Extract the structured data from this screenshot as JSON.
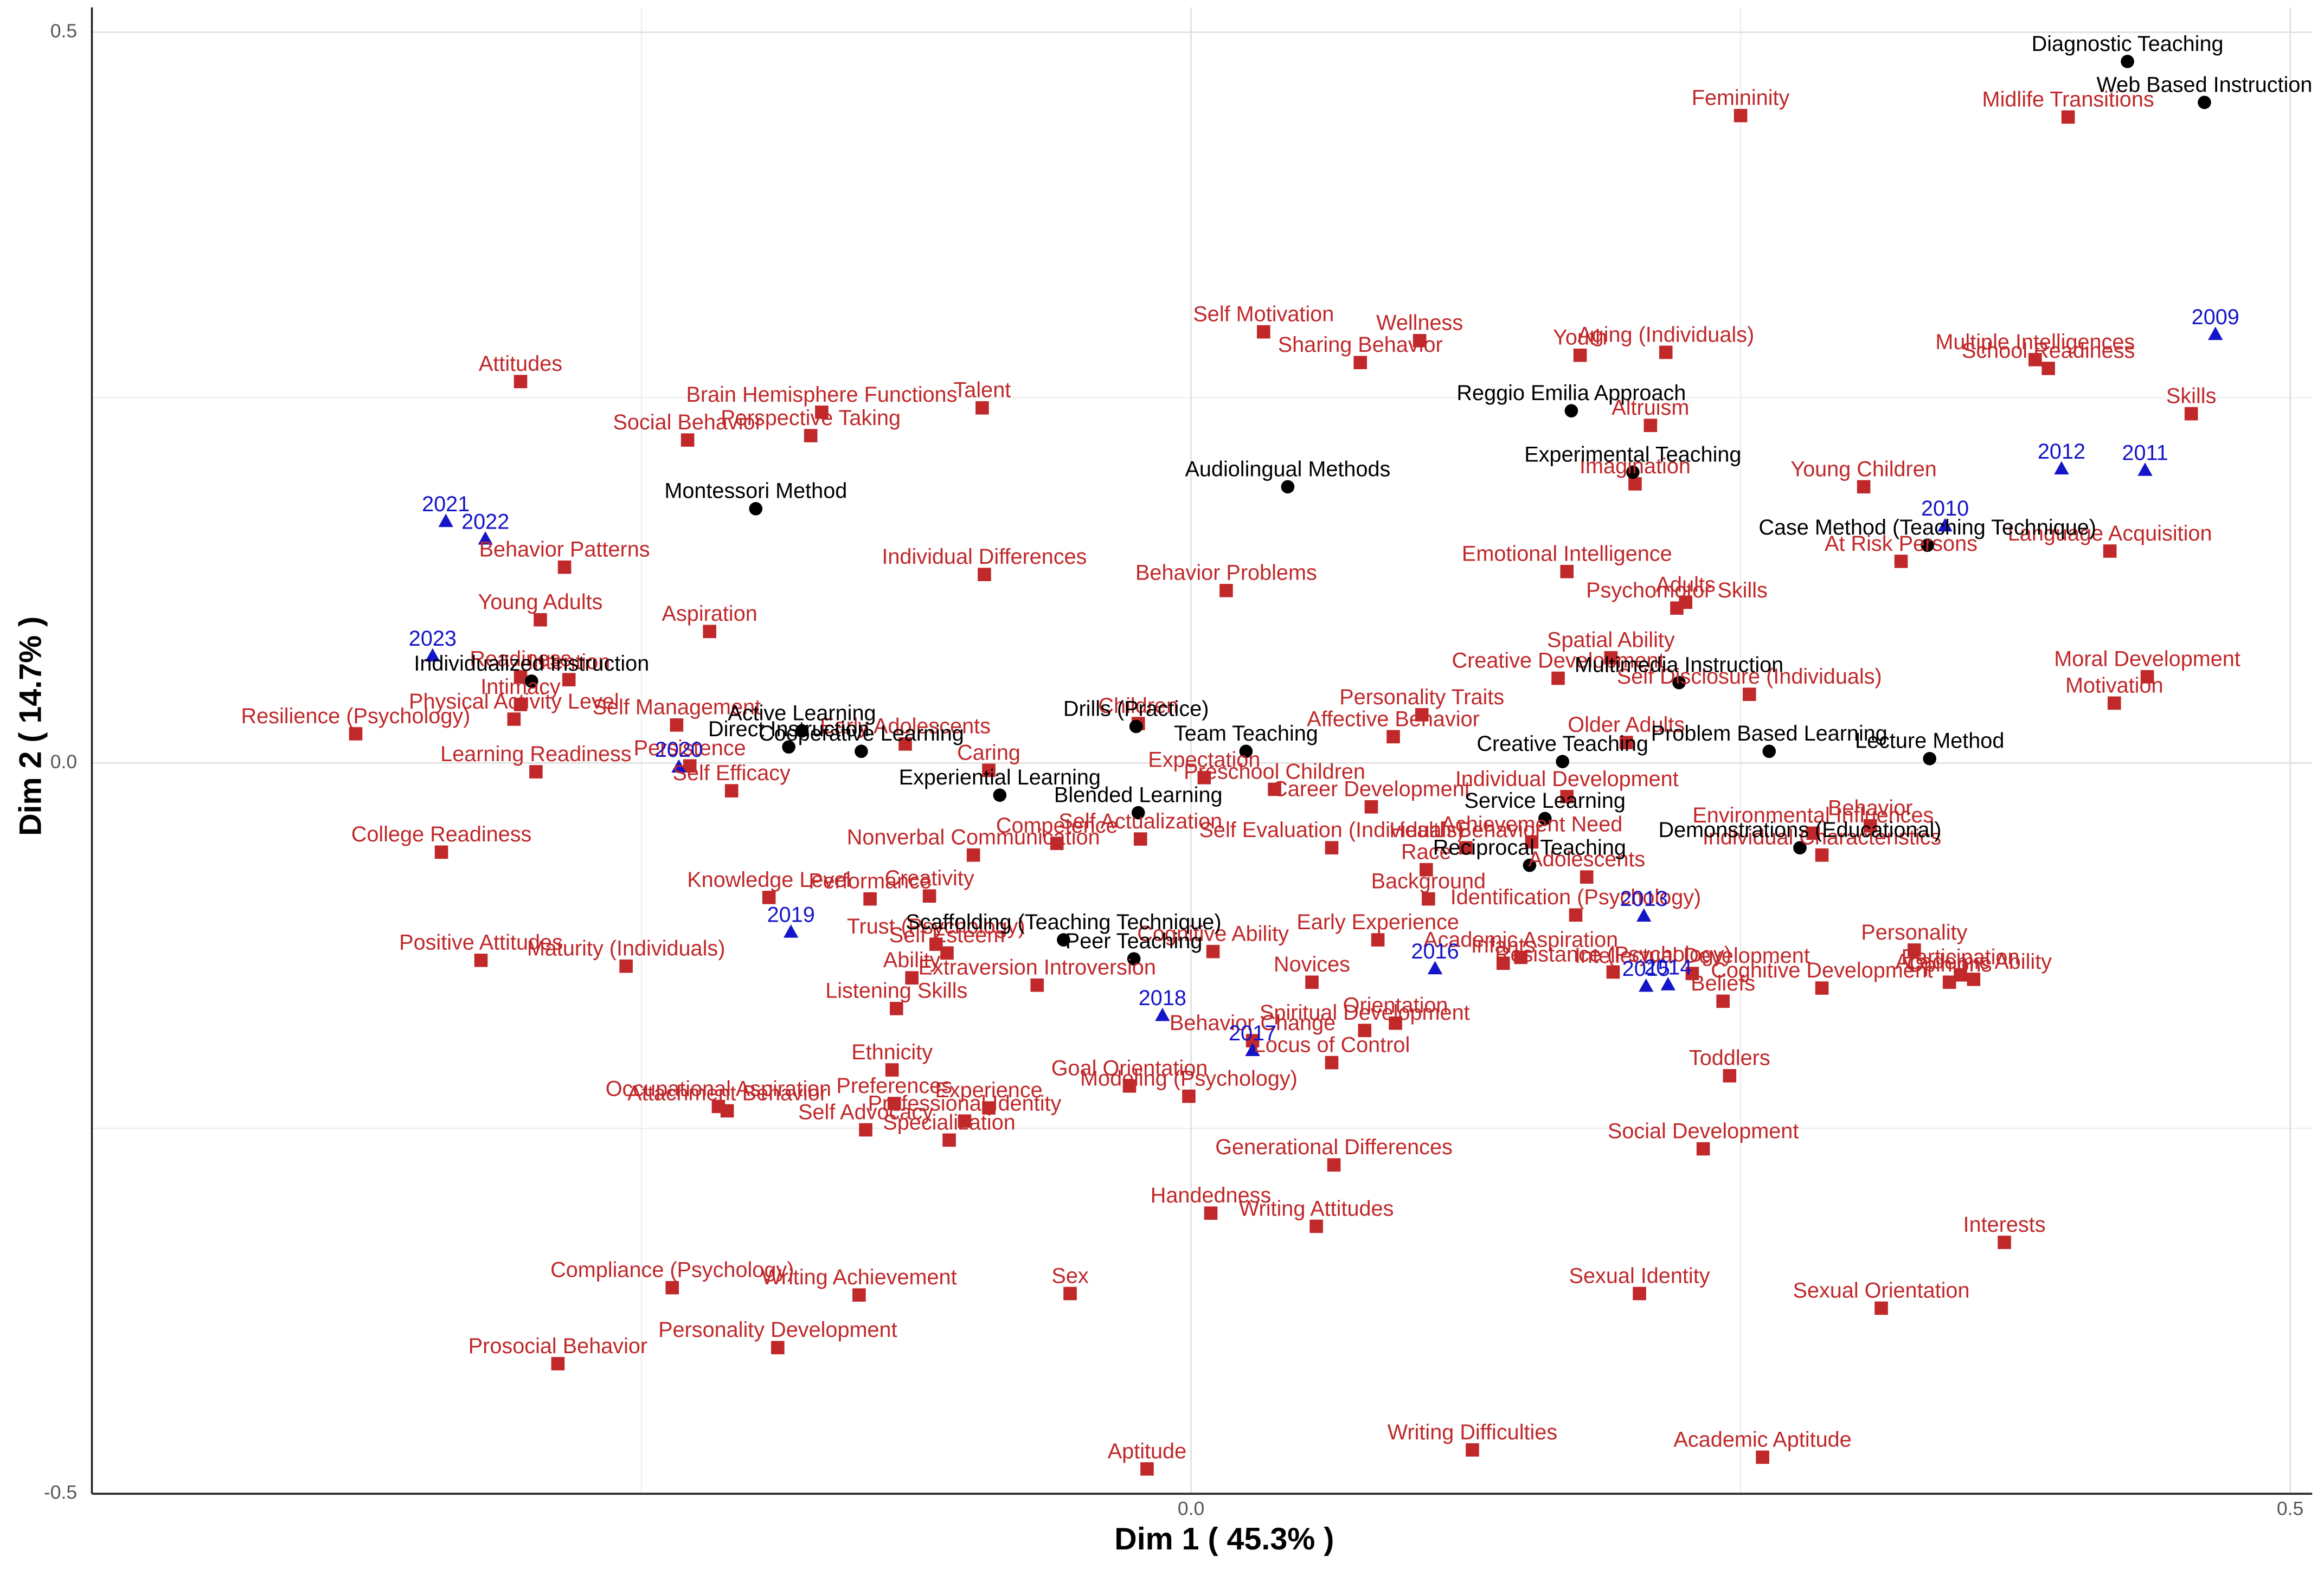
{
  "chart_data": {
    "type": "scatter",
    "x_label": "Dim 1 ( 45.3% )",
    "y_label": "Dim 2 ( 14.7% )",
    "xlim": [
      -0.5,
      0.51
    ],
    "ylim": [
      -0.5,
      0.517
    ],
    "xticks": [
      {
        "value": 0,
        "label": "0.0"
      },
      {
        "value": 0.5,
        "label": "0.5"
      }
    ],
    "yticks": [
      {
        "value": -0.5,
        "label": "-0.5"
      },
      {
        "value": 0,
        "label": "0.0"
      },
      {
        "value": 0.5,
        "label": "0.5"
      }
    ],
    "xminor": [
      -0.25,
      0.25
    ],
    "yminor": [
      -0.25,
      0.25
    ],
    "grid": true,
    "series": [
      {
        "color": "#c0282a",
        "marker": "square",
        "labels": [
          "Femininity",
          "Midlife Transitions",
          "Self Motivation",
          "Sharing Behavior",
          "Wellness",
          "Youth",
          "Aging (Individuals)",
          "Multiple Intelligences",
          "School Readiness",
          "Skills",
          "Attitudes",
          "Brain Hemisphere Functions",
          "Talent",
          "Social Behavior",
          "Perspective Taking",
          "Altruism",
          "Imagination",
          "Young Children",
          "Language Acquisition",
          "At Risk Persons",
          "Behavior Patterns",
          "Individual Differences",
          "Emotional Intelligence",
          "Behavior Problems",
          "Adults",
          "Psychomotor Skills",
          "Young Adults",
          "Aspiration",
          "Readiness",
          "Intention",
          "Spatial Ability",
          "Moral Development",
          "Motivation",
          "Self Disclosure (Individuals)",
          "Creative Development",
          "Personality Traits",
          "Affective Behavior",
          "Children",
          "Resilience (Psychology)",
          "Physical Activity Level",
          "Intimacy",
          "Self Management",
          "Early Adolescents",
          "Older Adults",
          "Learning Readiness",
          "Persistence",
          "Caring",
          "Expectation",
          "Self Efficacy",
          "Preschool Children",
          "Individual Development",
          "Career Development",
          "Health Behavior",
          "Achievement Need",
          "Behavior",
          "Environmental Influences",
          "Individual Characteristics",
          "Self Actualization",
          "College Readiness",
          "Nonverbal Communication",
          "Self Evaluation (Individuals)",
          "Competence",
          "Performance",
          "Creativity",
          "Knowledge Level",
          "Race",
          "Background",
          "Identification (Psychology)",
          "Adolescents",
          "Personality",
          "Participation",
          "Cognitive Development",
          "Opinions",
          "Beliefs",
          "Intellectual Development",
          "Academic Ability",
          "Positive Attitudes",
          "Maturity (Individuals)",
          "Trust (Psychology)",
          "Self Esteem",
          "Ability",
          "Early Experience",
          "Academic Aspiration",
          "Resistance (Psychology)",
          "Novices",
          "Extraversion Introversion",
          "Listening Skills",
          "Cognitive Ability",
          "Behavior Change",
          "Spiritual Development",
          "Ethnicity",
          "Preferences",
          "Goal Orientation",
          "Locus of Control",
          "Infants",
          "Orientation",
          "Toddlers",
          "Occupational Aspiration",
          "Attachment Behavior",
          "Professional Identity",
          "Experience",
          "Self Advocacy",
          "Modeling (Psychology)",
          "Specialization",
          "Social Development",
          "Generational Differences",
          "Handedness",
          "Writing Attitudes",
          "Interests",
          "Compliance (Psychology)",
          "Writing Achievement",
          "Sex",
          "Sexual Identity",
          "Sexual Orientation",
          "Personality Development",
          "Prosocial Behavior",
          "Writing Difficulties",
          "Academic Aptitude",
          "Aptitude"
        ],
        "x": [
          0.25,
          0.399,
          0.033,
          0.077,
          0.104,
          0.177,
          0.216,
          0.384,
          0.39,
          0.455,
          -0.305,
          -0.168,
          -0.095,
          -0.229,
          -0.173,
          0.209,
          0.202,
          0.306,
          0.418,
          0.323,
          -0.285,
          -0.094,
          0.171,
          0.016,
          0.225,
          0.221,
          -0.296,
          -0.219,
          -0.305,
          -0.283,
          0.191,
          0.435,
          0.42,
          0.254,
          0.167,
          0.105,
          0.092,
          -0.024,
          -0.38,
          -0.308,
          -0.305,
          -0.234,
          -0.13,
          0.198,
          -0.298,
          -0.228,
          -0.092,
          0.006,
          -0.209,
          0.038,
          0.171,
          0.082,
          0.125,
          0.155,
          0.309,
          0.283,
          0.287,
          -0.023,
          -0.341,
          -0.099,
          0.064,
          -0.061,
          -0.146,
          -0.119,
          -0.192,
          0.107,
          0.108,
          0.175,
          0.18,
          0.329,
          0.35,
          0.287,
          0.345,
          0.242,
          0.228,
          0.356,
          -0.323,
          -0.257,
          -0.116,
          -0.111,
          -0.127,
          0.085,
          0.15,
          0.192,
          0.055,
          -0.07,
          -0.134,
          0.01,
          0.028,
          0.079,
          -0.136,
          -0.135,
          -0.028,
          0.064,
          0.142,
          0.093,
          0.245,
          -0.215,
          -0.211,
          -0.103,
          -0.092,
          -0.148,
          -0.001,
          -0.11,
          0.233,
          0.065,
          0.009,
          0.057,
          0.37,
          -0.236,
          -0.151,
          -0.055,
          0.204,
          0.314,
          -0.188,
          -0.288,
          0.128,
          0.26,
          -0.02
        ],
        "values": [
          0.443,
          0.442,
          0.295,
          0.274,
          0.289,
          0.279,
          0.281,
          0.276,
          0.27,
          0.239,
          0.261,
          0.24,
          0.243,
          0.221,
          0.224,
          0.231,
          0.191,
          0.189,
          0.145,
          0.138,
          0.134,
          0.129,
          0.131,
          0.118,
          0.11,
          0.106,
          0.098,
          0.09,
          0.059,
          0.057,
          0.072,
          0.059,
          0.041,
          0.047,
          0.058,
          0.033,
          0.018,
          0.027,
          0.02,
          0.03,
          0.04,
          0.026,
          0.013,
          0.014,
          -0.006,
          -0.002,
          -0.005,
          -0.01,
          -0.019,
          -0.018,
          -0.023,
          -0.03,
          -0.058,
          -0.054,
          -0.043,
          -0.048,
          -0.063,
          -0.052,
          -0.061,
          -0.063,
          -0.058,
          -0.055,
          -0.093,
          -0.091,
          -0.092,
          -0.073,
          -0.093,
          -0.104,
          -0.078,
          -0.128,
          -0.145,
          -0.154,
          -0.15,
          -0.163,
          -0.144,
          -0.148,
          -0.135,
          -0.139,
          -0.124,
          -0.13,
          -0.147,
          -0.121,
          -0.133,
          -0.143,
          -0.15,
          -0.152,
          -0.168,
          -0.129,
          -0.19,
          -0.183,
          -0.21,
          -0.233,
          -0.221,
          -0.205,
          -0.137,
          -0.178,
          -0.214,
          -0.235,
          -0.238,
          -0.245,
          -0.236,
          -0.251,
          -0.228,
          -0.258,
          -0.264,
          -0.275,
          -0.308,
          -0.317,
          -0.328,
          -0.359,
          -0.364,
          -0.363,
          -0.363,
          -0.373,
          -0.4,
          -0.411,
          -0.47,
          -0.475,
          -0.483
        ]
      },
      {
        "color": "#000000",
        "marker": "circle",
        "labels": [
          "Diagnostic Teaching",
          "Web Based Instruction",
          "Reggio Emilia Approach",
          "Experimental Teaching",
          "Montessori Method",
          "Audiolingual Methods",
          "Case Method (Teaching Technique)",
          "Multimedia Instruction",
          "Individualized Instruction",
          "Active Learning",
          "Direct Instruction",
          "Cooperative Learning",
          "Drills (Practice)",
          "Problem Based Learning",
          "Lecture Method",
          "Team Teaching",
          "Creative Teaching",
          "Experiential Learning",
          "Blended Learning",
          "Service Learning",
          "Demonstrations (Educational)",
          "Reciprocal Teaching",
          "Scaffolding (Teaching Technique)",
          "Peer Teaching"
        ],
        "x": [
          0.426,
          0.461,
          0.173,
          0.201,
          -0.198,
          0.044,
          0.335,
          0.222,
          -0.3,
          -0.177,
          -0.183,
          -0.15,
          -0.025,
          0.263,
          0.336,
          0.025,
          0.169,
          -0.087,
          -0.024,
          0.161,
          0.277,
          0.154,
          -0.058,
          -0.026
        ],
        "values": [
          0.48,
          0.452,
          0.241,
          0.199,
          0.174,
          0.189,
          0.149,
          0.055,
          0.056,
          0.022,
          0.011,
          0.008,
          0.025,
          0.008,
          0.003,
          0.008,
          0.001,
          -0.022,
          -0.034,
          -0.038,
          -0.058,
          -0.07,
          -0.121,
          -0.134
        ]
      },
      {
        "color": "#1414c8",
        "marker": "triangle",
        "labels": [
          "2009",
          "2011",
          "2012",
          "2010",
          "2021",
          "2022",
          "2023",
          "2020",
          "2019",
          "2018",
          "2017",
          "2016",
          "2013",
          "2014",
          "2015"
        ],
        "x": [
          0.466,
          0.434,
          0.396,
          0.343,
          -0.339,
          -0.321,
          -0.345,
          -0.233,
          -0.182,
          -0.013,
          0.028,
          0.111,
          0.206,
          0.217,
          0.207
        ],
        "values": [
          0.293,
          0.2,
          0.201,
          0.162,
          0.165,
          0.153,
          0.073,
          -0.003,
          -0.116,
          -0.173,
          -0.197,
          -0.141,
          -0.105,
          -0.152,
          -0.153
        ]
      }
    ]
  }
}
